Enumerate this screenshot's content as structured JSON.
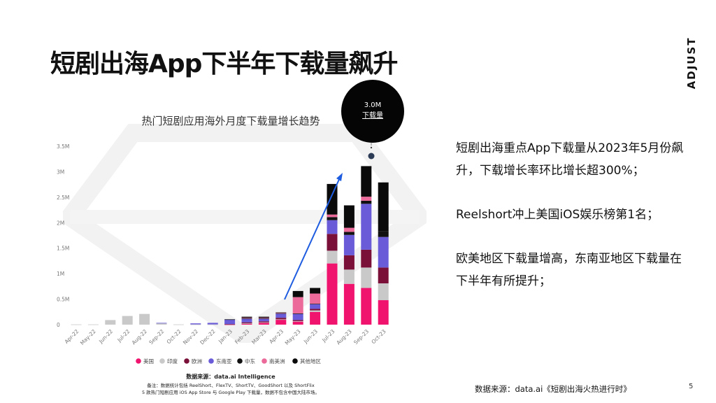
{
  "slide": {
    "title": "短剧出海App下半年下载量飙升",
    "brand": "ADJUST",
    "page_number": "5",
    "source": "数据来源：data.ai《短剧出海火热进行时》"
  },
  "bubble": {
    "value": "3.0M",
    "label": "下载量"
  },
  "bullets": [
    "短剧出海重点App下载量从2023年5月份飙升，下载增长率环比增长超300%；",
    "Reelshort冲上美国iOS娱乐榜第1名；",
    "欧美地区下载量增高，东南亚地区下载量在下半年有所提升；"
  ],
  "chart_notes": {
    "source_line": "数据来源：data.ai Intelligence",
    "note_line1": "备注：数据统计包括 ReelShort、FlexTV、ShortTV、GoodShort 以及 ShortFlix",
    "note_line2": "5 款热门短剧应用 iOS App Store 与 Google Play 下载量，数据不包含中国大陆市场。"
  },
  "chart_data": {
    "type": "bar",
    "stacked": true,
    "title": "热门短剧应用海外月度下载量增长趋势",
    "xlabel": "",
    "ylabel": "",
    "ylim": [
      0,
      3500000
    ],
    "yticks": [
      0,
      500000,
      1000000,
      1500000,
      2000000,
      2500000,
      3000000,
      3500000
    ],
    "ytick_labels": [
      "0",
      "0.5M",
      "1M",
      "1.5M",
      "2M",
      "2.5M",
      "3M",
      "3.5M"
    ],
    "categories": [
      "Apr-22",
      "May-22",
      "Jun-22",
      "Jul-22",
      "Aug-22",
      "Sep-22",
      "Oct-22",
      "Nov-22",
      "Dec-22",
      "Jan-23",
      "Feb-23",
      "Mar-23",
      "Apr-23",
      "May-23",
      "Jun-23",
      "Jul-23",
      "Aug-23",
      "Sep-23",
      "Oct-23"
    ],
    "legend_position": "bottom",
    "series": [
      {
        "name": "美国",
        "color": "#f0146e",
        "values": [
          0,
          0,
          0,
          0,
          0,
          0,
          0,
          0,
          0,
          5000,
          20000,
          40000,
          100000,
          60000,
          250000,
          1200000,
          800000,
          720000,
          480000
        ]
      },
      {
        "name": "印度",
        "color": "#c9c9c9",
        "values": [
          5000,
          5000,
          90000,
          170000,
          210000,
          30000,
          5000,
          5000,
          5000,
          0,
          5000,
          5000,
          5000,
          10000,
          30000,
          250000,
          280000,
          400000,
          330000
        ]
      },
      {
        "name": "欧洲",
        "color": "#7a1037",
        "values": [
          0,
          0,
          0,
          0,
          0,
          0,
          0,
          0,
          0,
          5000,
          20000,
          20000,
          30000,
          20000,
          30000,
          330000,
          280000,
          350000,
          310000
        ]
      },
      {
        "name": "东南亚",
        "color": "#6a5cd8",
        "values": [
          0,
          0,
          0,
          0,
          0,
          5000,
          0,
          20000,
          30000,
          90000,
          70000,
          50000,
          80000,
          120000,
          90000,
          270000,
          400000,
          900000,
          600000
        ]
      },
      {
        "name": "中东",
        "color": "#111111",
        "values": [
          0,
          0,
          0,
          0,
          0,
          0,
          0,
          0,
          0,
          5000,
          10000,
          10000,
          10000,
          10000,
          10000,
          60000,
          60000,
          60000,
          110000
        ]
      },
      {
        "name": "南美洲",
        "color": "#ec6a9a",
        "values": [
          0,
          0,
          0,
          0,
          0,
          0,
          0,
          0,
          0,
          0,
          10000,
          10000,
          5000,
          320000,
          200000,
          50000,
          80000,
          80000,
          0
        ]
      },
      {
        "name": "其他地区",
        "color": "#0a0a0a",
        "values": [
          0,
          0,
          0,
          0,
          0,
          0,
          0,
          0,
          0,
          0,
          20000,
          20000,
          10000,
          120000,
          110000,
          600000,
          440000,
          600000,
          960000
        ]
      }
    ]
  }
}
